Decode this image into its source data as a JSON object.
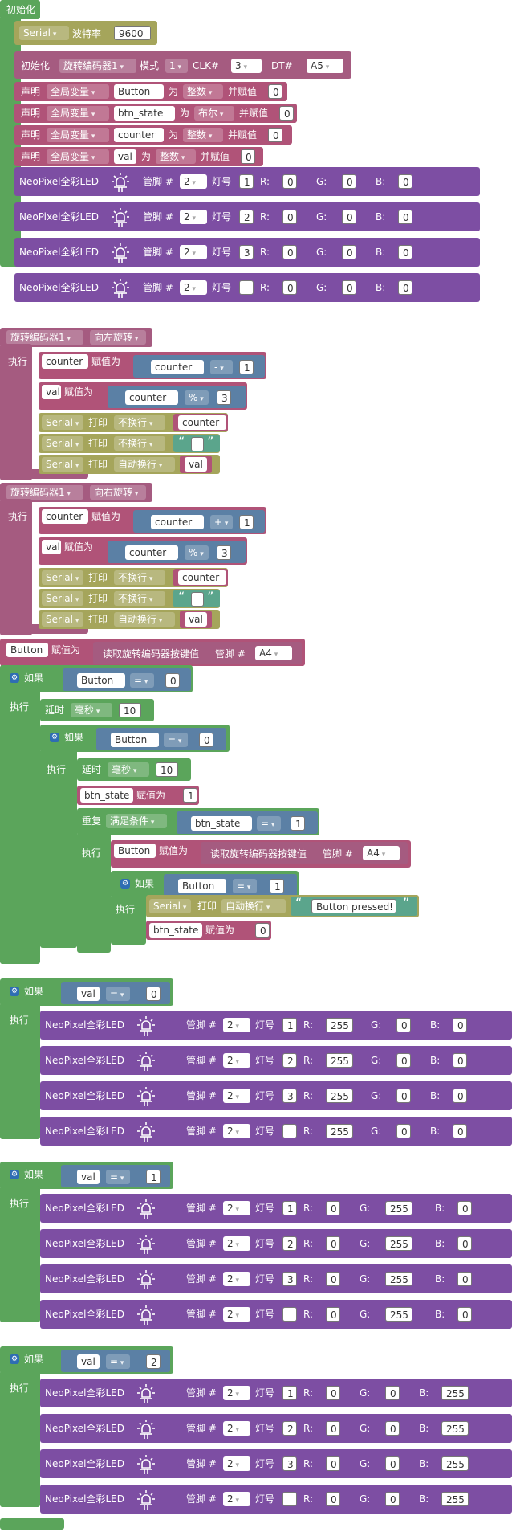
{
  "colors": {
    "init_green": "#5ba55b",
    "serial_olive": "#a5a55b",
    "rotary_purple": "#a55b80",
    "var_pink": "#b05378",
    "neo_purple": "#7d4ea3",
    "logic_blue": "#5b80a5",
    "text_teal": "#5ba58c",
    "field_white": "#ffffff"
  },
  "labels": {
    "init": "初始化",
    "serial": "Serial",
    "baud": "波特率",
    "baud_value": "9600",
    "encoder_init": "初始化",
    "encoder_name": "旋转编码器1",
    "mode": "模式",
    "mode_value": "1",
    "clk": "CLK#",
    "clk_value": "3",
    "dt": "DT#",
    "dt_value": "A5",
    "declare": "声明",
    "global_var": "全局变量",
    "as": "为",
    "and_assign": "并赋值",
    "int_type": "整数",
    "bool_type": "布尔",
    "var_button": "Button",
    "var_btn_state": "btn_state",
    "var_counter": "counter",
    "var_val": "val",
    "zero": "0",
    "neopixel": "NeoPixel全彩LED",
    "pin": "管脚 #",
    "led_no": "灯号",
    "r": "R:",
    "g": "G:",
    "b": "B:",
    "rotate_left": "向左旋转",
    "rotate_right": "向右旋转",
    "exec": "执行",
    "assign": "赋值为",
    "minus": "-",
    "plus": "+",
    "mod": "%",
    "three": "3",
    "one": "1",
    "two": "2",
    "print": "打印",
    "no_newline": "不换行",
    "auto_newline": "自动换行",
    "read_key": "读取旋转编码器按键值",
    "pin_a4": "A4",
    "if": "如果",
    "eq": "=",
    "delay": "延时",
    "ms": "毫秒",
    "ten": "10",
    "repeat": "重复",
    "while_cond": "满足条件",
    "button_pressed": "Button pressed!",
    "open_quote": "“",
    "close_quote": "”",
    "v255": "255"
  }
}
